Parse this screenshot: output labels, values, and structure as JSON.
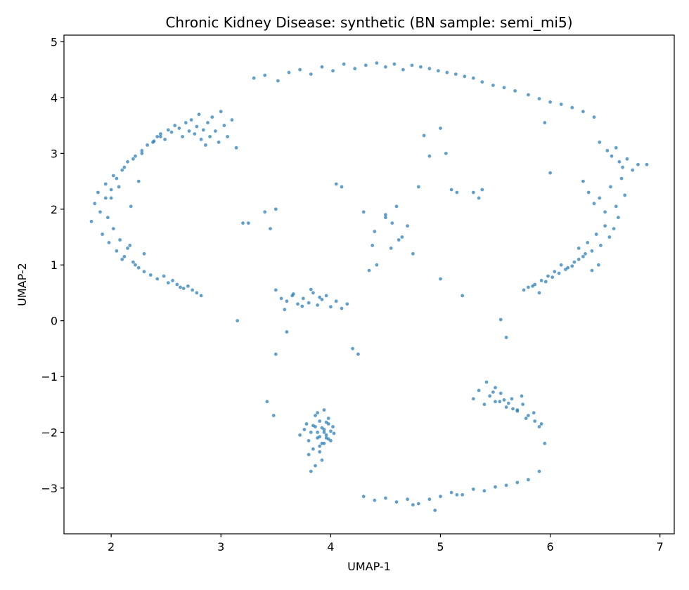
{
  "chart_data": {
    "type": "scatter",
    "title": "Chronic Kidney Disease: synthetic (BN sample: semi_mi5)",
    "xlabel": "UMAP-1",
    "ylabel": "UMAP-2",
    "xlim": [
      1.57,
      7.13
    ],
    "ylim": [
      -3.82,
      5.12
    ],
    "xticks": [
      2,
      3,
      4,
      5,
      6,
      7
    ],
    "yticks": [
      -3,
      -2,
      -1,
      0,
      1,
      2,
      3,
      4,
      5
    ],
    "grid": false,
    "point_color": "#1f77b4",
    "x": [
      1.82,
      1.85,
      1.88,
      1.9,
      1.92,
      1.95,
      1.98,
      2.0,
      2.02,
      2.05,
      2.07,
      2.1,
      2.12,
      2.15,
      2.18,
      2.2,
      2.22,
      2.25,
      2.28,
      2.3,
      1.95,
      1.97,
      2.0,
      2.02,
      2.05,
      2.08,
      2.1,
      2.12,
      2.15,
      2.17,
      2.2,
      2.22,
      2.25,
      2.28,
      2.3,
      2.33,
      2.36,
      2.39,
      2.42,
      2.45,
      2.48,
      2.52,
      2.56,
      2.6,
      2.63,
      2.66,
      2.7,
      2.74,
      2.78,
      2.82,
      2.38,
      2.42,
      2.45,
      2.49,
      2.52,
      2.55,
      2.58,
      2.62,
      2.65,
      2.68,
      2.71,
      2.73,
      2.76,
      2.78,
      2.8,
      2.82,
      2.84,
      2.86,
      2.88,
      2.9,
      2.92,
      2.95,
      2.98,
      3.0,
      3.03,
      3.06,
      3.1,
      3.14,
      3.3,
      3.4,
      3.52,
      3.62,
      3.72,
      3.82,
      3.92,
      4.02,
      4.12,
      4.22,
      4.32,
      4.42,
      4.5,
      4.58,
      4.66,
      4.74,
      4.82,
      4.9,
      4.98,
      5.06,
      5.14,
      5.22,
      5.3,
      5.38,
      5.48,
      5.58,
      5.68,
      5.8,
      5.9,
      6.0,
      6.1,
      6.2,
      6.3,
      6.4,
      6.45,
      6.52,
      6.56,
      6.6,
      6.63,
      6.66,
      6.7,
      6.75,
      6.8,
      6.88,
      6.3,
      6.35,
      6.4,
      6.45,
      6.5,
      6.55,
      6.6,
      6.65,
      6.68,
      6.62,
      6.58,
      6.54,
      6.5,
      6.46,
      6.42,
      6.38,
      6.34,
      6.3,
      6.26,
      6.22,
      6.16,
      6.1,
      6.04,
      5.98,
      5.92,
      5.86,
      5.8,
      5.76,
      5.84,
      5.9,
      5.96,
      6.02,
      6.08,
      6.14,
      6.2,
      6.26,
      6.32,
      6.38,
      6.44,
      3.55,
      3.6,
      3.65,
      3.7,
      3.75,
      3.8,
      3.84,
      3.88,
      3.92,
      3.96,
      4.0,
      4.05,
      4.1,
      4.15,
      3.5,
      3.58,
      3.66,
      3.74,
      3.82,
      3.9,
      3.78,
      3.82,
      3.86,
      3.88,
      3.9,
      3.92,
      3.94,
      3.96,
      3.98,
      4.0,
      4.02,
      3.84,
      3.86,
      3.9,
      3.94,
      3.98,
      3.8,
      3.88,
      3.96,
      3.92,
      3.72,
      3.76,
      3.8,
      3.84,
      3.88,
      3.9,
      3.92,
      3.94,
      3.96,
      3.98,
      4.0,
      4.03,
      3.86,
      3.9,
      3.82,
      3.94,
      5.3,
      5.35,
      5.4,
      5.45,
      5.5,
      5.55,
      5.6,
      5.65,
      5.7,
      5.75,
      5.8,
      5.85,
      5.5,
      5.58,
      5.66,
      5.74,
      5.62,
      5.7,
      5.78,
      5.86,
      5.9,
      5.92,
      5.95,
      5.42,
      5.48,
      5.54,
      4.3,
      4.4,
      4.5,
      4.6,
      4.7,
      4.8,
      4.9,
      5.0,
      5.1,
      5.2,
      5.3,
      5.4,
      5.5,
      5.6,
      5.7,
      5.8,
      5.9,
      4.75,
      4.95,
      5.15,
      4.3,
      4.4,
      4.5,
      4.55,
      4.6,
      4.65,
      4.7,
      4.75,
      4.5,
      4.62,
      4.42,
      4.35,
      4.38,
      4.56,
      3.2,
      3.15,
      3.25,
      3.4,
      3.5,
      3.45,
      4.1,
      4.05,
      5.0,
      5.05,
      4.85,
      4.9,
      4.8,
      5.1,
      5.15,
      5.3,
      5.35,
      5.38,
      5.0,
      5.2,
      6.0,
      5.95,
      3.5,
      3.6,
      4.2,
      4.25,
      3.42,
      3.48,
      5.55,
      5.6
    ],
    "y": [
      1.78,
      2.1,
      2.3,
      1.95,
      1.55,
      2.45,
      1.4,
      2.2,
      2.6,
      1.25,
      2.4,
      1.1,
      2.75,
      1.3,
      2.05,
      2.9,
      1.0,
      2.5,
      3.0,
      1.2,
      2.2,
      1.85,
      2.35,
      1.65,
      2.55,
      1.45,
      2.7,
      1.15,
      2.85,
      1.35,
      1.05,
      2.95,
      0.95,
      3.05,
      0.88,
      3.15,
      0.82,
      3.22,
      0.75,
      3.3,
      0.8,
      0.68,
      0.72,
      0.65,
      0.6,
      0.58,
      0.62,
      0.55,
      0.5,
      0.45,
      3.2,
      3.3,
      3.35,
      3.25,
      3.42,
      3.38,
      3.5,
      3.45,
      3.3,
      3.55,
      3.4,
      3.6,
      3.35,
      3.48,
      3.7,
      3.25,
      3.42,
      3.15,
      3.55,
      3.3,
      3.65,
      3.4,
      3.2,
      3.75,
      3.5,
      3.3,
      3.6,
      3.1,
      4.35,
      4.4,
      4.3,
      4.45,
      4.5,
      4.42,
      4.55,
      4.48,
      4.6,
      4.52,
      4.58,
      4.62,
      4.55,
      4.6,
      4.5,
      4.58,
      4.55,
      4.52,
      4.48,
      4.45,
      4.42,
      4.38,
      4.35,
      4.28,
      4.22,
      4.18,
      4.12,
      4.05,
      3.98,
      3.92,
      3.88,
      3.82,
      3.75,
      3.65,
      3.2,
      3.05,
      2.95,
      3.1,
      2.85,
      2.75,
      2.9,
      2.7,
      2.8,
      2.8,
      2.5,
      2.3,
      2.1,
      2.2,
      1.95,
      2.4,
      2.05,
      2.55,
      2.25,
      1.85,
      1.65,
      1.5,
      1.7,
      1.35,
      1.55,
      1.25,
      1.4,
      1.15,
      1.3,
      1.05,
      0.95,
      1.0,
      0.88,
      0.8,
      0.72,
      0.65,
      0.6,
      0.55,
      0.62,
      0.5,
      0.7,
      0.78,
      0.85,
      0.92,
      0.98,
      1.1,
      1.2,
      0.9,
      1.0,
      0.4,
      0.35,
      0.45,
      0.3,
      0.4,
      0.32,
      0.5,
      0.28,
      0.38,
      0.45,
      0.25,
      0.35,
      0.22,
      0.3,
      0.55,
      0.2,
      0.48,
      0.26,
      0.56,
      0.42,
      -1.85,
      -2.0,
      -1.9,
      -2.1,
      -1.8,
      -2.2,
      -1.95,
      -2.05,
      -1.75,
      -2.15,
      -1.9,
      -2.3,
      -1.7,
      -2.25,
      -2.0,
      -1.85,
      -2.4,
      -1.65,
      -2.1,
      -2.5,
      -2.05,
      -1.95,
      -2.15,
      -1.88,
      -2.0,
      -2.08,
      -1.92,
      -2.2,
      -1.82,
      -2.12,
      -1.98,
      -2.02,
      -2.6,
      -2.35,
      -2.7,
      -1.6,
      -1.4,
      -1.25,
      -1.5,
      -1.35,
      -1.45,
      -1.3,
      -1.55,
      -1.4,
      -1.6,
      -1.5,
      -1.7,
      -1.65,
      -1.2,
      -1.42,
      -1.58,
      -1.35,
      -1.48,
      -1.62,
      -1.75,
      -1.8,
      -1.9,
      -1.85,
      -2.2,
      -1.1,
      -1.28,
      -1.45,
      -3.15,
      -3.22,
      -3.18,
      -3.25,
      -3.2,
      -3.28,
      -3.2,
      -3.15,
      -3.08,
      -3.12,
      -3.02,
      -3.05,
      -2.98,
      -2.95,
      -2.9,
      -2.85,
      -2.7,
      -3.3,
      -3.4,
      -3.12,
      1.95,
      1.6,
      1.85,
      1.3,
      2.05,
      1.5,
      1.7,
      1.2,
      1.9,
      1.45,
      1.0,
      0.9,
      1.35,
      1.75,
      1.75,
      0.0,
      1.75,
      1.95,
      2.0,
      1.65,
      2.4,
      2.45,
      3.45,
      3.0,
      3.32,
      2.95,
      2.4,
      2.35,
      2.3,
      2.3,
      2.2,
      2.35,
      0.75,
      0.45,
      2.65,
      3.55,
      -0.6,
      -0.2,
      -0.5,
      -0.6,
      -1.45,
      -1.7,
      0.02,
      -0.3
    ]
  }
}
